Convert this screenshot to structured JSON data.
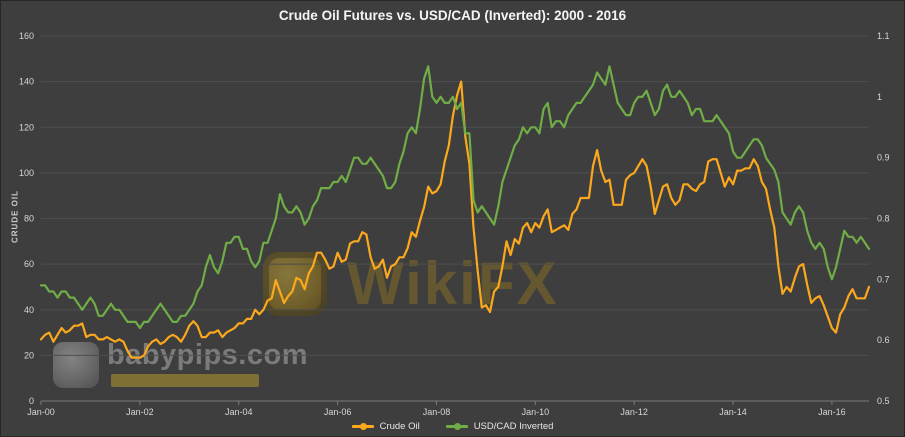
{
  "title": "Crude Oil Futures vs. USD/CAD (Inverted): 2000 - 2016",
  "colors": {
    "background": "#3e3e3e",
    "crude": "#FBA81C",
    "cad": "#70AD47",
    "grid": "#4e4e4e",
    "axis_line": "#7a7a7a",
    "axis_text": "#d6d6d6"
  },
  "axes": {
    "left_label": "CRUDE OIL",
    "left_ticks": [
      160,
      140,
      120,
      100,
      80,
      60,
      40,
      20,
      0
    ],
    "right_ticks": [
      "1.1",
      "1",
      "0.9",
      "0.8",
      "0.7",
      "0.6",
      "0.5"
    ],
    "x_ticks": [
      "Jan-00",
      "Jan-02",
      "Jan-04",
      "Jan-06",
      "Jan-08",
      "Jan-10",
      "Jan-12",
      "Jan-14",
      "Jan-16"
    ]
  },
  "legend": [
    {
      "label": "Crude Oil",
      "color": "#FBA81C"
    },
    {
      "label": "USD/CAD Inverted",
      "color": "#70AD47"
    }
  ],
  "watermarks": {
    "center": "WikiFX",
    "bottom_left": "babypips.com"
  },
  "chart_data": {
    "type": "line",
    "title": "Crude Oil Futures vs. USD/CAD (Inverted): 2000 - 2016",
    "interval": "monthly",
    "x_start": "2000-01",
    "x_end": "2016-10",
    "x_tick_labels": [
      "Jan-00",
      "Jan-02",
      "Jan-04",
      "Jan-06",
      "Jan-08",
      "Jan-10",
      "Jan-12",
      "Jan-14",
      "Jan-16"
    ],
    "x_tick_month_step": 24,
    "left_axis": {
      "label": "CRUDE OIL",
      "min": 0,
      "max": 160
    },
    "right_axis": {
      "label": "USD/CAD Inverted",
      "min": 0.5,
      "max": 1.1
    },
    "grid": true,
    "legend_position": "bottom",
    "series": [
      {
        "name": "Crude Oil",
        "axis": "left",
        "color": "#FBA81C",
        "values": [
          27,
          29,
          30,
          26,
          29,
          32,
          30,
          31,
          33,
          33,
          34,
          28,
          29,
          29,
          27,
          27,
          28,
          27,
          26,
          27,
          26,
          22,
          19,
          19,
          19,
          20,
          24,
          26,
          27,
          25,
          26,
          28,
          29,
          28,
          26,
          29,
          33,
          35,
          33,
          28,
          28,
          30,
          30,
          31,
          28,
          30,
          31,
          32,
          34,
          34,
          36,
          36,
          40,
          38,
          40,
          44,
          45,
          53,
          48,
          43,
          46,
          48,
          54,
          53,
          49,
          56,
          59,
          65,
          65,
          62,
          58,
          59,
          65,
          61,
          62,
          69,
          70,
          70,
          74,
          73,
          63,
          58,
          59,
          62,
          54,
          59,
          60,
          63,
          63,
          67,
          74,
          72,
          79,
          85,
          94,
          91,
          92,
          95,
          105,
          112,
          125,
          134,
          140,
          116,
          104,
          76,
          57,
          41,
          42,
          39,
          48,
          50,
          59,
          70,
          64,
          71,
          69,
          76,
          78,
          74,
          78,
          76,
          81,
          84,
          74,
          75,
          76,
          77,
          75,
          82,
          84,
          89,
          89,
          89,
          103,
          110,
          101,
          96,
          97,
          86,
          86,
          86,
          97,
          99,
          100,
          103,
          106,
          103,
          94,
          82,
          88,
          94,
          95,
          89,
          86,
          88,
          95,
          95,
          93,
          92,
          95,
          96,
          105,
          106,
          106,
          100,
          94,
          98,
          95,
          101,
          101,
          102,
          102,
          106,
          103,
          96,
          93,
          84,
          76,
          59,
          47,
          50,
          48,
          54,
          59,
          60,
          51,
          43,
          45,
          46,
          42,
          37,
          32,
          30,
          38,
          41,
          46,
          49,
          45,
          45,
          45,
          50
        ]
      },
      {
        "name": "USD/CAD Inverted",
        "axis": "right",
        "color": "#70AD47",
        "values": [
          0.69,
          0.69,
          0.68,
          0.68,
          0.67,
          0.68,
          0.68,
          0.67,
          0.67,
          0.66,
          0.65,
          0.66,
          0.67,
          0.66,
          0.64,
          0.64,
          0.65,
          0.66,
          0.65,
          0.65,
          0.64,
          0.63,
          0.63,
          0.63,
          0.62,
          0.63,
          0.63,
          0.64,
          0.65,
          0.66,
          0.65,
          0.64,
          0.63,
          0.63,
          0.64,
          0.64,
          0.65,
          0.66,
          0.68,
          0.69,
          0.72,
          0.74,
          0.72,
          0.71,
          0.73,
          0.76,
          0.76,
          0.77,
          0.77,
          0.75,
          0.75,
          0.73,
          0.72,
          0.73,
          0.76,
          0.76,
          0.78,
          0.8,
          0.84,
          0.82,
          0.81,
          0.81,
          0.82,
          0.81,
          0.79,
          0.8,
          0.82,
          0.83,
          0.85,
          0.85,
          0.85,
          0.86,
          0.86,
          0.87,
          0.86,
          0.88,
          0.9,
          0.9,
          0.89,
          0.89,
          0.9,
          0.89,
          0.88,
          0.87,
          0.85,
          0.85,
          0.86,
          0.89,
          0.91,
          0.94,
          0.95,
          0.94,
          0.98,
          1.03,
          1.05,
          1.0,
          0.99,
          1.0,
          0.99,
          0.99,
          1.0,
          0.98,
          0.99,
          0.94,
          0.94,
          0.83,
          0.81,
          0.82,
          0.81,
          0.8,
          0.79,
          0.82,
          0.86,
          0.88,
          0.9,
          0.92,
          0.93,
          0.95,
          0.94,
          0.95,
          0.95,
          0.94,
          0.98,
          0.99,
          0.95,
          0.96,
          0.96,
          0.95,
          0.97,
          0.98,
          0.99,
          0.99,
          1.0,
          1.01,
          1.02,
          1.04,
          1.03,
          1.02,
          1.05,
          1.02,
          0.99,
          0.98,
          0.97,
          0.97,
          0.99,
          1.0,
          1.0,
          1.01,
          0.99,
          0.97,
          0.98,
          1.01,
          1.02,
          1.0,
          1.0,
          1.01,
          1.0,
          0.99,
          0.97,
          0.98,
          0.98,
          0.96,
          0.96,
          0.96,
          0.97,
          0.96,
          0.95,
          0.94,
          0.91,
          0.9,
          0.9,
          0.91,
          0.92,
          0.93,
          0.93,
          0.92,
          0.9,
          0.89,
          0.88,
          0.86,
          0.81,
          0.8,
          0.79,
          0.81,
          0.82,
          0.81,
          0.78,
          0.76,
          0.75,
          0.76,
          0.75,
          0.72,
          0.7,
          0.72,
          0.75,
          0.78,
          0.77,
          0.77,
          0.76,
          0.77,
          0.76,
          0.75
        ]
      }
    ]
  }
}
